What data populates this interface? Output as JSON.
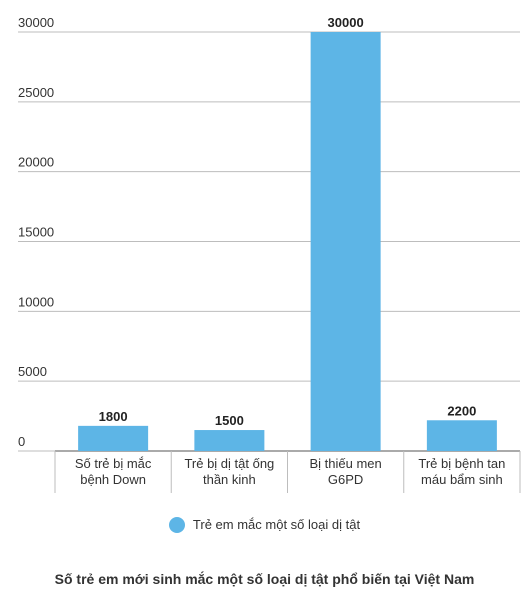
{
  "chart_data": {
    "type": "bar",
    "title": "Số trẻ em mới sinh mắc một số loại dị tật phổ biến tại Việt Nam",
    "xlabel": "",
    "ylabel": "",
    "categories": [
      [
        "Số trẻ bị mắc",
        "bệnh Down"
      ],
      [
        "Trẻ bị dị tật ống",
        "thần kinh"
      ],
      [
        "Bị thiếu men",
        "G6PD"
      ],
      [
        "Trẻ bị bệnh tan",
        "máu bẩm sinh"
      ]
    ],
    "series": [
      {
        "name": "Trẻ em mắc một số loại dị tật",
        "values": [
          1800,
          1500,
          30000,
          2200
        ]
      }
    ],
    "ylim": [
      0,
      30000
    ],
    "yticks": [
      0,
      5000,
      10000,
      15000,
      20000,
      25000,
      30000
    ],
    "grid": true,
    "legend": "bottom",
    "bar_color": "#5db5e6",
    "grid_color": "#bdbdbd"
  }
}
